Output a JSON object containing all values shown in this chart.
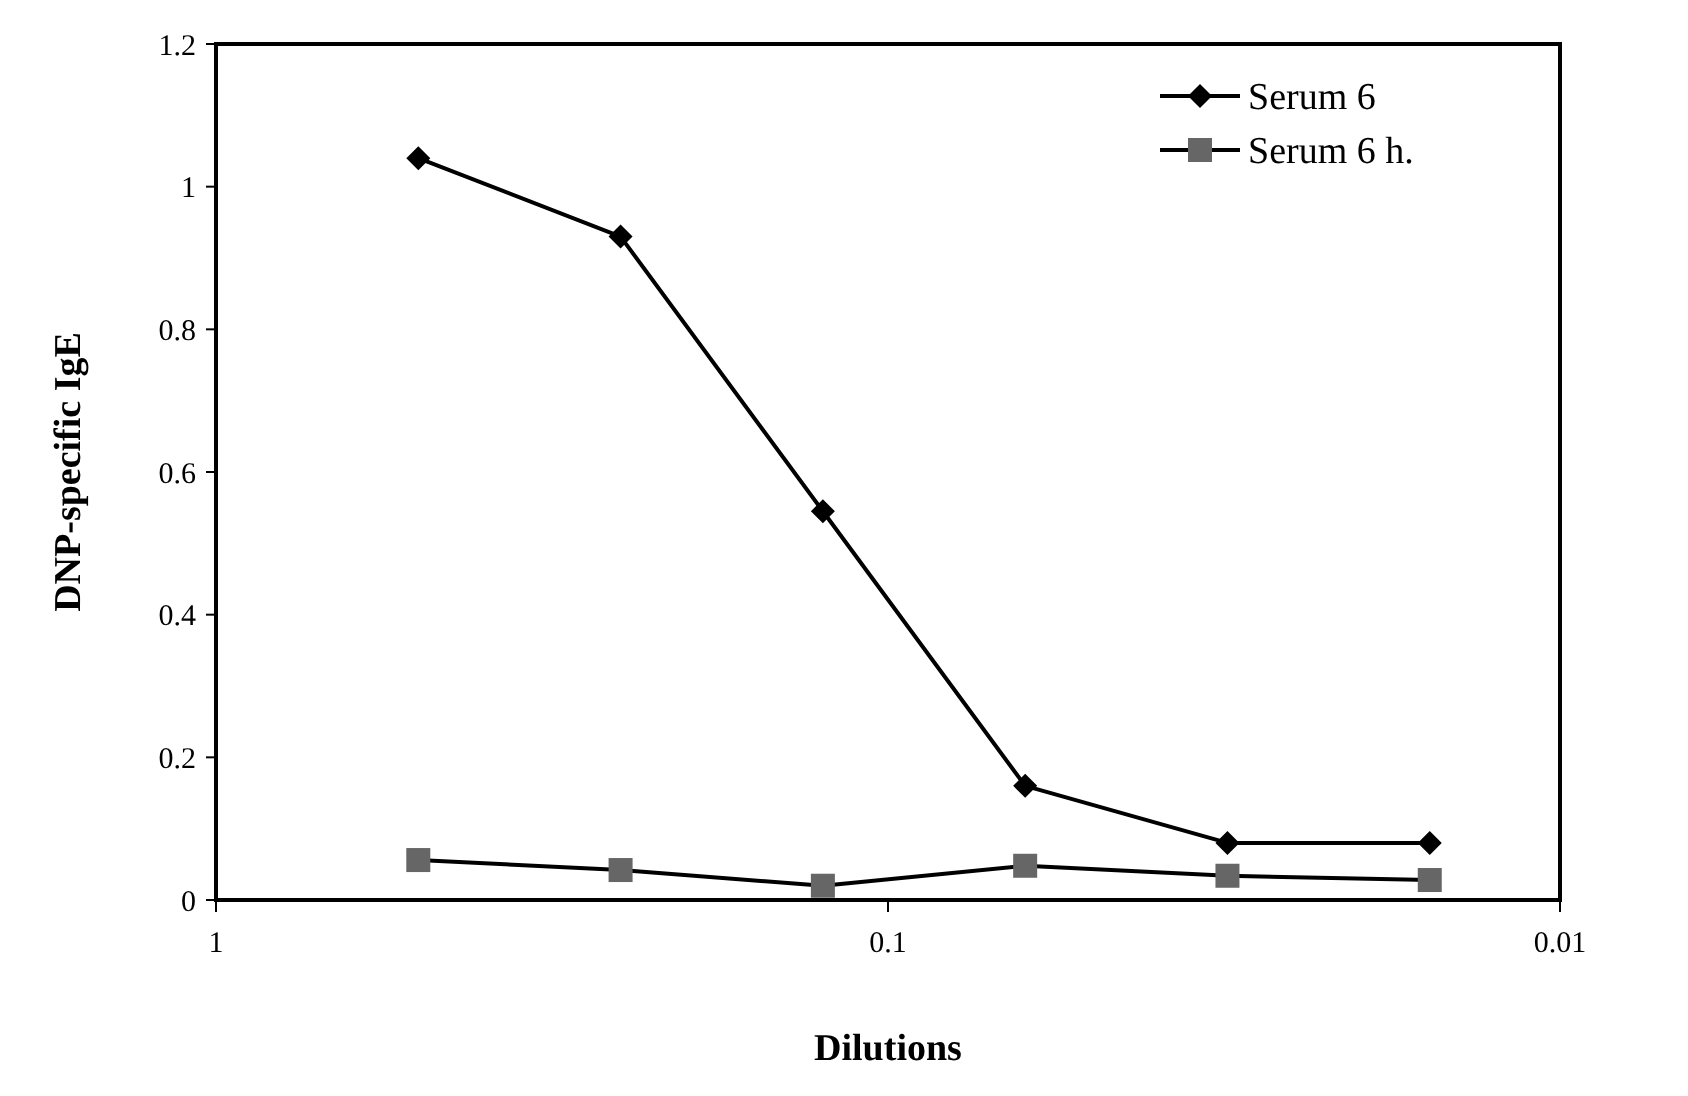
{
  "chart_data": {
    "type": "line",
    "xlabel": "Dilutions",
    "ylabel": "DNP-specific IgE",
    "x": [
      0.5,
      0.25,
      0.125,
      0.0625,
      0.03125,
      0.015625
    ],
    "series": [
      {
        "name": "Serum 6",
        "color": "#000000",
        "marker": "diamond",
        "values": [
          1.04,
          0.93,
          0.545,
          0.16,
          0.08,
          0.08
        ]
      },
      {
        "name": "Serum 6 h.",
        "color": "#666666",
        "marker": "square",
        "values": [
          0.056,
          0.042,
          0.02,
          0.048,
          0.034,
          0.028
        ]
      }
    ],
    "log": "x",
    "xlim": [
      1,
      0.01
    ],
    "xticks": [
      1,
      0.1,
      0.01
    ],
    "ylim": [
      0,
      1.2
    ],
    "yticks": [
      0,
      0.2,
      0.4,
      0.6,
      0.8,
      1,
      1.2
    ],
    "legend": "top right",
    "grid": false,
    "line_style": "solid"
  }
}
